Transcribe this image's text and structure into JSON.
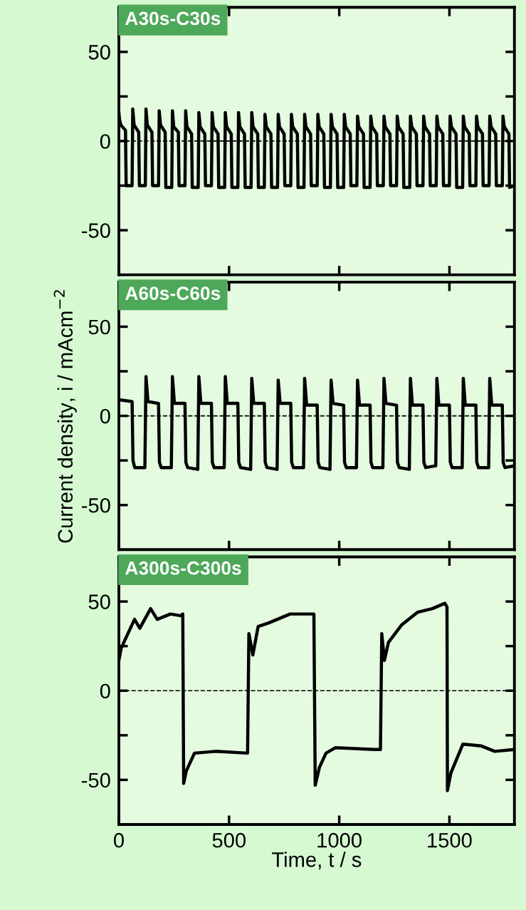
{
  "chart_data": [
    {
      "type": "line",
      "title": "A30s-C30s",
      "xlim": [
        0,
        1795
      ],
      "ylim": [
        -75,
        75
      ],
      "xticks": [
        0,
        500,
        1000,
        1500
      ],
      "yticks": [
        {
          "value": -50,
          "label": "-50"
        },
        {
          "value": -25,
          "label": null
        },
        0,
        {
          "value": 25,
          "label": null
        },
        50
      ],
      "tick_labels": "y",
      "ref_lines": [
        {
          "axis": "y",
          "value": 0,
          "line_style": "dashed",
          "color": "#000000"
        }
      ],
      "x": [
        0,
        3,
        9,
        30,
        33,
        60,
        63,
        69,
        90,
        93,
        120,
        123,
        129,
        150,
        153,
        180,
        183,
        189,
        210,
        213,
        240,
        243,
        249,
        270,
        273,
        300,
        303,
        309,
        330,
        333,
        360,
        363,
        369,
        390,
        393,
        420,
        423,
        429,
        450,
        453,
        480,
        483,
        489,
        510,
        513,
        540,
        543,
        549,
        570,
        573,
        600,
        603,
        609,
        630,
        633,
        660,
        663,
        669,
        690,
        693,
        720,
        723,
        729,
        750,
        753,
        780,
        783,
        789,
        810,
        813,
        840,
        843,
        849,
        870,
        873,
        900,
        903,
        909,
        930,
        933,
        960,
        963,
        969,
        990,
        993,
        1020,
        1023,
        1029,
        1050,
        1053,
        1080,
        1083,
        1089,
        1110,
        1113,
        1140,
        1143,
        1149,
        1170,
        1173,
        1200,
        1203,
        1209,
        1230,
        1233,
        1260,
        1263,
        1269,
        1290,
        1293,
        1320,
        1323,
        1329,
        1350,
        1353,
        1380,
        1383,
        1389,
        1410,
        1413,
        1440,
        1443,
        1449,
        1470,
        1473,
        1500,
        1503,
        1509,
        1530,
        1533,
        1560,
        1563,
        1569,
        1590,
        1593,
        1620,
        1623,
        1629,
        1650,
        1653,
        1680,
        1683,
        1689,
        1710,
        1713,
        1740,
        1743,
        1749,
        1770,
        1773,
        1795
      ],
      "series": [
        {
          "color": "#000000",
          "values": [
            16,
            12,
            9,
            6,
            -25,
            -25,
            18,
            9,
            5,
            -25,
            -25,
            18,
            9,
            5,
            -25,
            -25,
            17,
            9,
            5,
            -26,
            -26,
            17,
            8,
            5,
            -25,
            -25,
            17,
            8,
            4,
            -26,
            -26,
            16,
            8,
            4,
            -25,
            -25,
            16,
            8,
            4,
            -26,
            -26,
            16,
            8,
            4,
            -26,
            -26,
            16,
            8,
            4,
            -26,
            -26,
            16,
            8,
            4,
            -26,
            -26,
            15,
            8,
            4,
            -26,
            -26,
            15,
            8,
            4,
            -25,
            -25,
            15,
            8,
            4,
            -26,
            -26,
            15,
            8,
            4,
            -25,
            -25,
            15,
            8,
            4,
            -26,
            -26,
            15,
            8,
            4,
            -26,
            -26,
            15,
            8,
            4,
            -25,
            -25,
            14,
            8,
            4,
            -26,
            -26,
            14,
            8,
            4,
            -25,
            -25,
            14,
            8,
            4,
            -25,
            -25,
            14,
            8,
            4,
            -26,
            -26,
            14,
            8,
            4,
            -25,
            -25,
            14,
            8,
            4,
            -25,
            -25,
            14,
            8,
            4,
            -25,
            -25,
            14,
            8,
            4,
            -26,
            -26,
            14,
            8,
            4,
            -25,
            -25,
            14,
            8,
            4,
            -25,
            -25,
            14,
            8,
            4,
            -25,
            -25,
            14,
            8,
            4,
            -26,
            -25
          ]
        }
      ]
    },
    {
      "type": "line",
      "title": "A60s-C60s",
      "ylabel": "Current density, i / mAcm$^{−2}$",
      "xlim": [
        0,
        1795
      ],
      "ylim": [
        -75,
        75
      ],
      "xticks": [
        0,
        500,
        1000,
        1500
      ],
      "yticks": [
        {
          "value": -50,
          "label": "-50"
        },
        {
          "value": -25,
          "label": null
        },
        0,
        {
          "value": 25,
          "label": null
        },
        50
      ],
      "tick_labels": "y",
      "ref_lines": [
        {
          "axis": "y",
          "value": 0,
          "line_style": "dashed",
          "color": "#000000"
        }
      ],
      "x": [
        0,
        60,
        64,
        72,
        118,
        123,
        132,
        180,
        184,
        192,
        238,
        243,
        252,
        300,
        304,
        312,
        358,
        363,
        372,
        420,
        424,
        432,
        478,
        483,
        492,
        540,
        544,
        552,
        598,
        603,
        612,
        660,
        664,
        672,
        718,
        723,
        732,
        780,
        784,
        792,
        838,
        843,
        852,
        900,
        904,
        912,
        958,
        963,
        972,
        1020,
        1024,
        1032,
        1078,
        1083,
        1092,
        1140,
        1144,
        1152,
        1198,
        1203,
        1212,
        1260,
        1264,
        1272,
        1318,
        1323,
        1332,
        1380,
        1384,
        1392,
        1438,
        1443,
        1452,
        1500,
        1504,
        1512,
        1558,
        1563,
        1572,
        1620,
        1624,
        1632,
        1678,
        1683,
        1692,
        1740,
        1744,
        1752,
        1795
      ],
      "series": [
        {
          "color": "#000000",
          "values": [
            9,
            8,
            -25,
            -29,
            -29,
            22,
            8,
            7,
            -26,
            -29,
            -29,
            22,
            7,
            7,
            -26,
            -29,
            -30,
            22,
            7,
            7,
            -26,
            -29,
            -29,
            22,
            7,
            7,
            -26,
            -29,
            -30,
            21,
            7,
            7,
            -26,
            -29,
            -30,
            20,
            7,
            7,
            -26,
            -29,
            -29,
            21,
            6,
            6,
            -26,
            -29,
            -30,
            20,
            7,
            6,
            -26,
            -29,
            -29,
            20,
            6,
            6,
            -26,
            -29,
            -29,
            21,
            7,
            6,
            -26,
            -29,
            -30,
            21,
            6,
            6,
            -26,
            -29,
            -28,
            21,
            6,
            6,
            -26,
            -29,
            -29,
            21,
            6,
            6,
            -26,
            -29,
            -29,
            21,
            6,
            6,
            -26,
            -29,
            -28
          ]
        }
      ]
    },
    {
      "type": "line",
      "title": "A300s-C300s",
      "xlabel": "Time, t / s",
      "xlim": [
        0,
        1795
      ],
      "ylim": [
        -75,
        75
      ],
      "xticks": [
        0,
        500,
        1000,
        1500
      ],
      "yticks": [
        {
          "value": -50,
          "label": "-50"
        },
        {
          "value": -25,
          "label": null
        },
        0,
        {
          "value": 25,
          "label": null
        },
        50
      ],
      "ref_lines": [
        {
          "axis": "y",
          "value": 0,
          "line_style": "dashed",
          "color": "#000000"
        }
      ],
      "x": [
        0,
        11,
        41,
        71,
        95,
        144,
        174,
        234,
        282,
        290,
        294,
        306,
        343,
        439,
        584,
        590,
        608,
        632,
        680,
        777,
        885,
        891,
        910,
        940,
        982,
        1163,
        1187,
        1193,
        1205,
        1223,
        1284,
        1356,
        1422,
        1479,
        1489,
        1491,
        1507,
        1561,
        1645,
        1706,
        1790
      ],
      "series": [
        {
          "color": "#000000",
          "values": [
            17,
            24,
            32,
            40,
            35,
            46,
            40,
            43,
            42,
            43,
            -52,
            -45,
            -35,
            -34,
            -35,
            32,
            20,
            36,
            38,
            43,
            43,
            -53,
            -43,
            -35,
            -32,
            -33,
            -33,
            32,
            17,
            27,
            37,
            44,
            46,
            49,
            47,
            -56,
            -46,
            -30,
            -31,
            -34,
            -33
          ]
        }
      ]
    }
  ]
}
